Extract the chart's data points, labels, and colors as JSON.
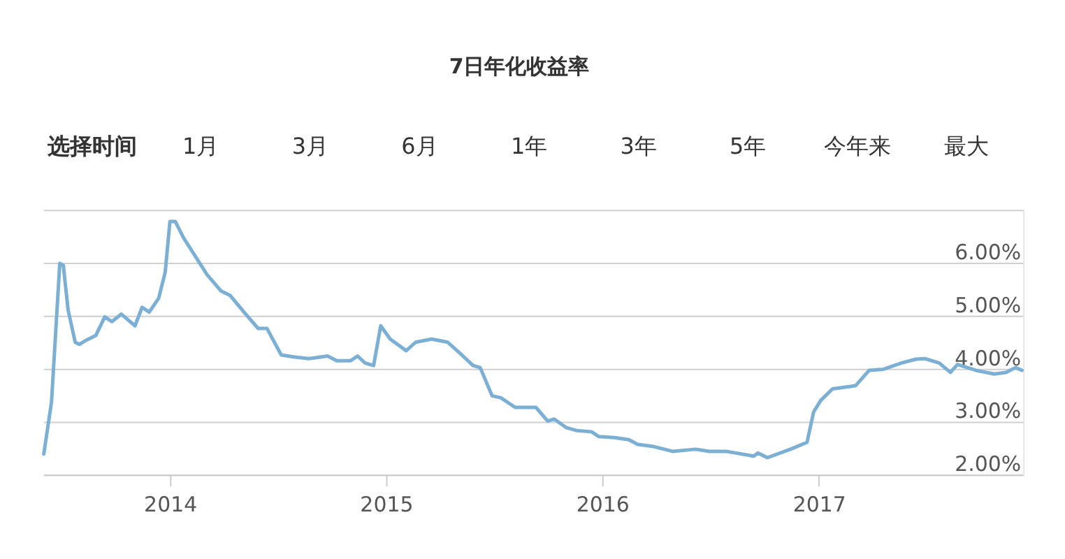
{
  "chart_data": {
    "type": "line",
    "title": "7日年化收益率",
    "annotations": [
      "选择时间",
      "1月",
      "3月",
      "6月",
      "1年",
      "3年",
      "5年",
      "今年来",
      "最大"
    ],
    "x": [
      "2013-06-02",
      "2013-06-15",
      "2013-06-29",
      "2013-07-05",
      "2013-07-13",
      "2013-07-25",
      "2013-08-01",
      "2013-08-13",
      "2013-08-29",
      "2013-09-13",
      "2013-09-25",
      "2013-10-11",
      "2013-11-03",
      "2013-11-15",
      "2013-11-27",
      "2013-12-13",
      "2013-12-24",
      "2014-01-01",
      "2014-01-10",
      "2014-01-24",
      "2014-03-05",
      "2014-03-28",
      "2014-04-13",
      "2014-05-06",
      "2014-05-30",
      "2014-06-14",
      "2014-06-22",
      "2014-07-08",
      "2014-07-31",
      "2014-08-24",
      "2014-09-24",
      "2014-10-10",
      "2014-11-02",
      "2014-11-14",
      "2014-11-26",
      "2014-12-11",
      "2014-12-23",
      "2015-01-08",
      "2015-02-04",
      "2015-02-20",
      "2015-03-19",
      "2015-04-15",
      "2015-05-05",
      "2015-05-28",
      "2015-06-09",
      "2015-06-29",
      "2015-07-14",
      "2015-08-07",
      "2015-08-30",
      "2015-09-11",
      "2015-10-01",
      "2015-10-12",
      "2015-11-01",
      "2015-11-20",
      "2015-12-14",
      "2015-12-26",
      "2016-01-22",
      "2016-02-15",
      "2016-03-01",
      "2016-03-28",
      "2016-04-29",
      "2016-06-07",
      "2016-06-30",
      "2016-07-28",
      "2016-09-13",
      "2016-09-20",
      "2016-10-06",
      "2016-11-14",
      "2016-12-12",
      "2016-12-23",
      "2017-01-04",
      "2017-01-24",
      "2017-03-04",
      "2017-03-27",
      "2017-04-20",
      "2017-05-21",
      "2017-06-14",
      "2017-06-29",
      "2017-07-23",
      "2017-08-11",
      "2017-08-23",
      "2017-09-23",
      "2017-10-24",
      "2017-11-13",
      "2017-11-29",
      "2017-12-10"
    ],
    "series": [
      {
        "color": "#7bafd4",
        "values": [
          2.39,
          3.37,
          5.99,
          5.95,
          5.11,
          4.5,
          4.46,
          4.54,
          4.63,
          4.98,
          4.89,
          5.03,
          4.81,
          5.16,
          5.07,
          5.33,
          5.82,
          6.78,
          6.78,
          6.47,
          5.77,
          5.47,
          5.38,
          5.07,
          4.76,
          4.76,
          4.59,
          4.26,
          4.22,
          4.19,
          4.24,
          4.15,
          4.15,
          4.24,
          4.11,
          4.06,
          4.81,
          4.56,
          4.34,
          4.5,
          4.56,
          4.5,
          4.3,
          4.06,
          4.02,
          3.49,
          3.45,
          3.27,
          3.27,
          3.27,
          3.01,
          3.05,
          2.89,
          2.83,
          2.81,
          2.72,
          2.7,
          2.66,
          2.57,
          2.53,
          2.44,
          2.48,
          2.44,
          2.44,
          2.35,
          2.41,
          2.32,
          2.48,
          2.61,
          3.18,
          3.4,
          3.62,
          3.68,
          3.97,
          3.99,
          4.11,
          4.18,
          4.19,
          4.11,
          3.93,
          4.08,
          3.97,
          3.9,
          3.93,
          4.02,
          3.97
        ]
      }
    ],
    "xlim": [
      "2013-06-01",
      "2017-12-12"
    ],
    "xticks": [
      {
        "value": "2014-01-01",
        "label": "2014"
      },
      {
        "value": "2015-01-01",
        "label": "2015"
      },
      {
        "value": "2016-01-01",
        "label": "2016"
      },
      {
        "value": "2017-01-01",
        "label": "2017"
      }
    ],
    "ylim": [
      2,
      7
    ],
    "yticks": [
      {
        "value": 2,
        "label": "2.00%"
      },
      {
        "value": 3,
        "label": "3.00%"
      },
      {
        "value": 4,
        "label": "4.00%"
      },
      {
        "value": 5,
        "label": "5.00%"
      },
      {
        "value": 6,
        "label": "6.00%"
      },
      {
        "value": 7,
        "label": null
      }
    ],
    "grid": "y",
    "marker": "none",
    "line_style": "solid"
  }
}
